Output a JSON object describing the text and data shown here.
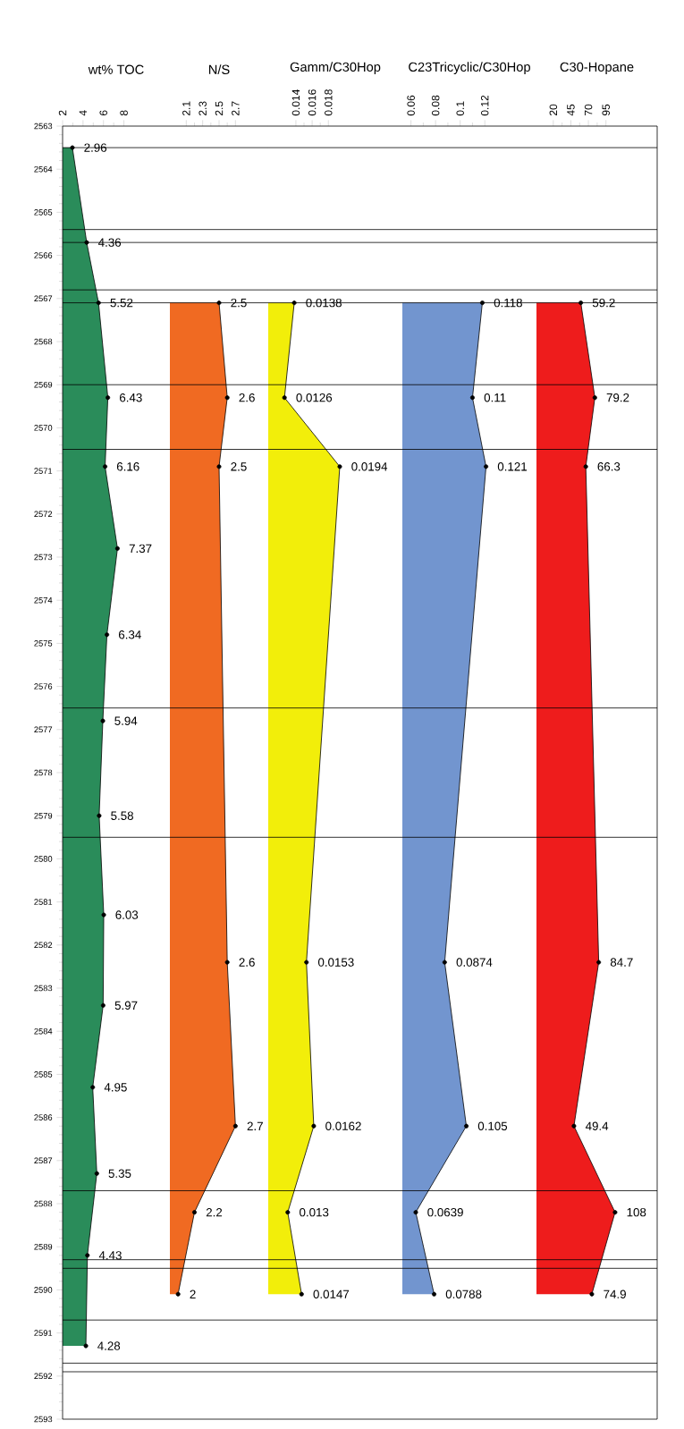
{
  "chart_data": [
    {
      "type": "area",
      "orientation": "horizontal",
      "title": "wt% TOC",
      "color": "#2a8c5a",
      "marker": "circle",
      "xlim": [
        2,
        12.5
      ],
      "xticks": [
        2,
        4,
        6,
        8
      ],
      "ylim": [
        2593,
        2563
      ],
      "yticks": [
        2563,
        2564,
        2565,
        2566,
        2567,
        2568,
        2569,
        2570,
        2571,
        2572,
        2573,
        2574,
        2575,
        2576,
        2577,
        2578,
        2579,
        2580,
        2581,
        2582,
        2583,
        2584,
        2585,
        2586,
        2587,
        2588,
        2589,
        2590,
        2591,
        2592,
        2593
      ],
      "values": [
        2.96,
        4.36,
        5.52,
        6.43,
        6.16,
        7.37,
        6.34,
        5.94,
        5.58,
        6.03,
        5.97,
        4.95,
        5.35,
        4.43,
        4.28
      ],
      "x": [
        2563.5,
        2565.7,
        2567.1,
        2569.3,
        2570.9,
        2572.8,
        2574.8,
        2576.8,
        2579.0,
        2581.3,
        2583.4,
        2585.3,
        2587.3,
        2589.2,
        2591.3
      ],
      "annotations": [
        {
          "text": "2.96",
          "x": 2.96,
          "y": 2563.5
        },
        {
          "text": "4.36",
          "x": 4.36,
          "y": 2565.7
        },
        {
          "text": "5.52",
          "x": 5.52,
          "y": 2567.1
        },
        {
          "text": "6.43",
          "x": 6.43,
          "y": 2569.3
        },
        {
          "text": "6.16",
          "x": 6.16,
          "y": 2570.9
        },
        {
          "text": "7.37",
          "x": 7.37,
          "y": 2572.8
        },
        {
          "text": "6.34",
          "x": 6.34,
          "y": 2574.8
        },
        {
          "text": "5.94",
          "x": 5.94,
          "y": 2576.8
        },
        {
          "text": "5.58",
          "x": 5.58,
          "y": 2579.0
        },
        {
          "text": "6.03",
          "x": 6.03,
          "y": 2581.3
        },
        {
          "text": "5.97",
          "x": 5.97,
          "y": 2583.4
        },
        {
          "text": "4.95",
          "x": 4.95,
          "y": 2585.3
        },
        {
          "text": "5.35",
          "x": 5.35,
          "y": 2587.3
        },
        {
          "text": "4.43",
          "x": 4.43,
          "y": 2589.2
        },
        {
          "text": "4.28",
          "x": 4.28,
          "y": 2591.3
        }
      ],
      "ref_lines": [
        {
          "axis": "y",
          "value": 2563.5
        },
        {
          "axis": "y",
          "value": 2565.4
        },
        {
          "axis": "y",
          "value": 2565.7
        },
        {
          "axis": "y",
          "value": 2566.8
        },
        {
          "axis": "y",
          "value": 2567.1
        },
        {
          "axis": "y",
          "value": 2569.0
        },
        {
          "axis": "y",
          "value": 2570.5
        },
        {
          "axis": "y",
          "value": 2576.5
        },
        {
          "axis": "y",
          "value": 2579.5
        },
        {
          "axis": "y",
          "value": 2587.7
        },
        {
          "axis": "y",
          "value": 2589.3
        },
        {
          "axis": "y",
          "value": 2589.5
        },
        {
          "axis": "y",
          "value": 2590.7
        },
        {
          "axis": "y",
          "value": 2591.7
        },
        {
          "axis": "y",
          "value": 2591.9
        }
      ]
    },
    {
      "type": "area",
      "orientation": "horizontal",
      "title": "N/S",
      "color": "#f06a22",
      "marker": "circle",
      "tick_labels": "x",
      "xlim": [
        1.9,
        3.1
      ],
      "xticks": [
        2.1,
        2.3,
        2.5,
        2.7
      ],
      "ylim": [
        2593,
        2563
      ],
      "values": [
        2.5,
        2.6,
        2.5,
        2.6,
        2.7,
        2.2,
        2
      ],
      "x": [
        2567.1,
        2569.3,
        2570.9,
        2582.4,
        2586.2,
        2588.2,
        2590.1
      ],
      "annotations": [
        {
          "text": "2.5",
          "x": 2.5,
          "y": 2567.1
        },
        {
          "text": "2.6",
          "x": 2.6,
          "y": 2569.3
        },
        {
          "text": "2.5",
          "x": 2.5,
          "y": 2570.9
        },
        {
          "text": "2.6",
          "x": 2.6,
          "y": 2582.4
        },
        {
          "text": "2.7",
          "x": 2.7,
          "y": 2586.2
        },
        {
          "text": "2.2",
          "x": 2.2,
          "y": 2588.2
        },
        {
          "text": "2",
          "x": 2,
          "y": 2590.1
        }
      ],
      "ref_lines": [
        {
          "axis": "y",
          "value": 2563.5
        },
        {
          "axis": "y",
          "value": 2565.4
        },
        {
          "axis": "y",
          "value": 2565.7
        },
        {
          "axis": "y",
          "value": 2566.8
        },
        {
          "axis": "y",
          "value": 2567.1
        },
        {
          "axis": "y",
          "value": 2569.0
        },
        {
          "axis": "y",
          "value": 2570.5
        },
        {
          "axis": "y",
          "value": 2576.5
        },
        {
          "axis": "y",
          "value": 2579.5
        },
        {
          "axis": "y",
          "value": 2587.7
        },
        {
          "axis": "y",
          "value": 2589.3
        },
        {
          "axis": "y",
          "value": 2589.5
        },
        {
          "axis": "y",
          "value": 2590.7
        },
        {
          "axis": "y",
          "value": 2591.7
        },
        {
          "axis": "y",
          "value": 2591.9
        }
      ]
    },
    {
      "type": "area",
      "orientation": "horizontal",
      "title": "Gamm/C30Hop",
      "color": "#f2ee0a",
      "marker": "circle",
      "tick_labels": "x",
      "xlim": [
        0.0106,
        0.0271
      ],
      "xticks": [
        0.014,
        0.016,
        0.018
      ],
      "ylim": [
        2593,
        2563
      ],
      "values": [
        0.0138,
        0.0126,
        0.0194,
        0.0153,
        0.0162,
        0.013,
        0.0147
      ],
      "x": [
        2567.1,
        2569.3,
        2570.9,
        2582.4,
        2586.2,
        2588.2,
        2590.1
      ],
      "annotations": [
        {
          "text": "0.0138",
          "x": 0.0138,
          "y": 2567.1
        },
        {
          "text": "0.0126",
          "x": 0.0126,
          "y": 2569.3
        },
        {
          "text": "0.0194",
          "x": 0.0194,
          "y": 2570.9
        },
        {
          "text": "0.0153",
          "x": 0.0153,
          "y": 2582.4
        },
        {
          "text": "0.0162",
          "x": 0.0162,
          "y": 2586.2
        },
        {
          "text": "0.013",
          "x": 0.013,
          "y": 2588.2
        },
        {
          "text": "0.0147",
          "x": 0.0147,
          "y": 2590.1
        }
      ],
      "ref_lines": [
        {
          "axis": "y",
          "value": 2563.5
        },
        {
          "axis": "y",
          "value": 2565.4
        },
        {
          "axis": "y",
          "value": 2565.7
        },
        {
          "axis": "y",
          "value": 2566.8
        },
        {
          "axis": "y",
          "value": 2567.1
        },
        {
          "axis": "y",
          "value": 2569.0
        },
        {
          "axis": "y",
          "value": 2570.5
        },
        {
          "axis": "y",
          "value": 2576.5
        },
        {
          "axis": "y",
          "value": 2579.5
        },
        {
          "axis": "y",
          "value": 2587.7
        },
        {
          "axis": "y",
          "value": 2589.3
        },
        {
          "axis": "y",
          "value": 2589.5
        },
        {
          "axis": "y",
          "value": 2590.7
        },
        {
          "axis": "y",
          "value": 2591.7
        },
        {
          "axis": "y",
          "value": 2591.9
        }
      ]
    },
    {
      "type": "area",
      "orientation": "horizontal",
      "title": "C23Tricyclic/C30Hop",
      "color": "#7295cf",
      "marker": "circle",
      "tick_labels": "x",
      "xlim": [
        0.053,
        0.162
      ],
      "xticks": [
        0.06,
        0.08,
        0.1,
        0.12
      ],
      "ylim": [
        2593,
        2563
      ],
      "values": [
        0.118,
        0.11,
        0.121,
        0.0874,
        0.105,
        0.0639,
        0.0788
      ],
      "x": [
        2567.1,
        2569.3,
        2570.9,
        2582.4,
        2586.2,
        2588.2,
        2590.1
      ],
      "annotations": [
        {
          "text": "0.118",
          "x": 0.118,
          "y": 2567.1
        },
        {
          "text": "0.11",
          "x": 0.11,
          "y": 2569.3
        },
        {
          "text": "0.121",
          "x": 0.121,
          "y": 2570.9
        },
        {
          "text": "0.0874",
          "x": 0.0874,
          "y": 2582.4
        },
        {
          "text": "0.105",
          "x": 0.105,
          "y": 2586.2
        },
        {
          "text": "0.0639",
          "x": 0.0639,
          "y": 2588.2
        },
        {
          "text": "0.0788",
          "x": 0.0788,
          "y": 2590.1
        }
      ],
      "ref_lines": [
        {
          "axis": "y",
          "value": 2563.5
        },
        {
          "axis": "y",
          "value": 2565.4
        },
        {
          "axis": "y",
          "value": 2565.7
        },
        {
          "axis": "y",
          "value": 2566.8
        },
        {
          "axis": "y",
          "value": 2567.1
        },
        {
          "axis": "y",
          "value": 2569.0
        },
        {
          "axis": "y",
          "value": 2570.5
        },
        {
          "axis": "y",
          "value": 2576.5
        },
        {
          "axis": "y",
          "value": 2579.5
        },
        {
          "axis": "y",
          "value": 2587.7
        },
        {
          "axis": "y",
          "value": 2589.3
        },
        {
          "axis": "y",
          "value": 2589.5
        },
        {
          "axis": "y",
          "value": 2590.7
        },
        {
          "axis": "y",
          "value": 2591.7
        },
        {
          "axis": "y",
          "value": 2591.9
        }
      ]
    },
    {
      "type": "area",
      "orientation": "horizontal",
      "title": "C30-Hopane",
      "color": "#ee1c1c",
      "marker": "circle",
      "tick_labels": "x",
      "xlim": [
        -4,
        168
      ],
      "xticks": [
        20,
        45,
        70,
        95
      ],
      "ylim": [
        2593,
        2563
      ],
      "values": [
        59.2,
        79.2,
        66.3,
        84.7,
        49.4,
        108,
        74.9
      ],
      "x": [
        2567.1,
        2569.3,
        2570.9,
        2582.4,
        2586.2,
        2588.2,
        2590.1
      ],
      "annotations": [
        {
          "text": "59.2",
          "x": 59.2,
          "y": 2567.1
        },
        {
          "text": "79.2",
          "x": 79.2,
          "y": 2569.3
        },
        {
          "text": "66.3",
          "x": 66.3,
          "y": 2570.9
        },
        {
          "text": "84.7",
          "x": 84.7,
          "y": 2582.4
        },
        {
          "text": "49.4",
          "x": 49.4,
          "y": 2586.2
        },
        {
          "text": "108",
          "x": 108,
          "y": 2588.2
        },
        {
          "text": "74.9",
          "x": 74.9,
          "y": 2590.1
        }
      ],
      "ref_lines": [
        {
          "axis": "y",
          "value": 2563.5
        },
        {
          "axis": "y",
          "value": 2565.4
        },
        {
          "axis": "y",
          "value": 2565.7
        },
        {
          "axis": "y",
          "value": 2566.8
        },
        {
          "axis": "y",
          "value": 2567.1
        },
        {
          "axis": "y",
          "value": 2569.0
        },
        {
          "axis": "y",
          "value": 2570.5
        },
        {
          "axis": "y",
          "value": 2576.5
        },
        {
          "axis": "y",
          "value": 2579.5
        },
        {
          "axis": "y",
          "value": 2587.7
        },
        {
          "axis": "y",
          "value": 2589.3
        },
        {
          "axis": "y",
          "value": 2589.5
        },
        {
          "axis": "y",
          "value": 2590.7
        },
        {
          "axis": "y",
          "value": 2591.7
        },
        {
          "axis": "y",
          "value": 2591.9
        }
      ]
    }
  ]
}
